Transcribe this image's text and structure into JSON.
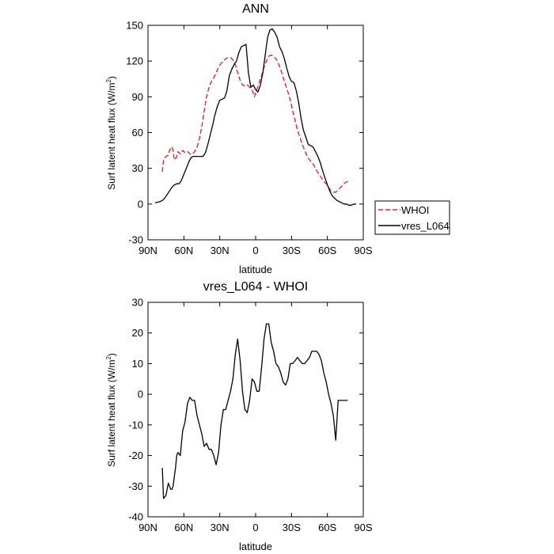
{
  "chart_data": [
    {
      "type": "line",
      "title": "ANN",
      "xlabel": "latitude",
      "ylabel": "Surf latent heat flux (W/m",
      "ylabel_sup": "2",
      "ylabel_close": ")",
      "xlim": [
        90,
        -90
      ],
      "ylim": [
        -30,
        150
      ],
      "xticks": [
        {
          "value": 90,
          "label": "90N"
        },
        {
          "value": 60,
          "label": "60N"
        },
        {
          "value": 30,
          "label": "30N"
        },
        {
          "value": 0,
          "label": "0"
        },
        {
          "value": -30,
          "label": "30S"
        },
        {
          "value": -60,
          "label": "60S"
        },
        {
          "value": -90,
          "label": "90S"
        }
      ],
      "yticks": [
        -30,
        0,
        30,
        60,
        90,
        120,
        150
      ],
      "legend": {
        "placement": "right",
        "entries": [
          "WHOI",
          "vres_L064"
        ]
      },
      "series": [
        {
          "name": "WHOI",
          "color": "#e41a1c",
          "dash": true,
          "x": [
            78,
            77,
            75,
            73,
            72,
            71,
            70,
            69,
            68,
            67,
            66,
            65,
            63,
            61,
            59,
            57,
            55,
            53,
            51,
            49,
            47,
            45,
            43,
            41,
            39,
            37,
            35,
            33,
            31,
            29,
            27,
            25,
            23,
            21,
            19,
            17,
            15,
            13,
            11,
            9,
            7,
            5,
            3,
            1,
            -1,
            -3,
            -5,
            -7,
            -9,
            -11,
            -13,
            -15,
            -17,
            -19,
            -21,
            -23,
            -25,
            -27,
            -29,
            -31,
            -33,
            -35,
            -37,
            -39,
            -41,
            -43,
            -45,
            -47,
            -49,
            -51,
            -53,
            -55,
            -57,
            -59,
            -61,
            -63,
            -65,
            -67,
            -69,
            -71,
            -73,
            -75,
            -77
          ],
          "y": [
            27,
            37,
            40,
            41,
            45,
            47,
            48,
            45,
            37,
            38,
            40,
            44,
            42,
            45,
            43,
            44,
            42,
            42,
            44,
            48,
            55,
            65,
            78,
            90,
            98,
            103,
            106,
            110,
            115,
            118,
            120,
            122,
            123,
            123,
            121,
            117,
            110,
            104,
            100,
            99,
            100,
            98,
            96,
            90,
            96,
            102,
            108,
            115,
            120,
            124,
            125,
            124,
            122,
            118,
            113,
            106,
            100,
            94,
            87,
            78,
            70,
            62,
            56,
            50,
            45,
            40,
            37,
            35,
            32,
            28,
            25,
            22,
            19,
            17,
            14,
            11,
            10,
            10,
            12,
            14,
            16,
            18,
            19
          ]
        },
        {
          "name": "vres_L064",
          "color": "#000000",
          "dash": false,
          "x": [
            84,
            80,
            78,
            76,
            74,
            72,
            70,
            68,
            66,
            64,
            62,
            60,
            58,
            56,
            54,
            52,
            50,
            48,
            46,
            44,
            42,
            40,
            38,
            36,
            34,
            32,
            30,
            28,
            26,
            24,
            22,
            20,
            18,
            16,
            14,
            12,
            10,
            8,
            6,
            4,
            2,
            0,
            -2,
            -4,
            -6,
            -8,
            -10,
            -12,
            -14,
            -16,
            -18,
            -20,
            -22,
            -24,
            -26,
            -28,
            -30,
            -32,
            -34,
            -36,
            -38,
            -40,
            -42,
            -44,
            -46,
            -48,
            -50,
            -52,
            -54,
            -56,
            -58,
            -60,
            -62,
            -64,
            -66,
            -68,
            -70,
            -72,
            -74,
            -76,
            -78,
            -80,
            -82,
            -84
          ],
          "y": [
            1,
            2,
            3,
            5,
            8,
            11,
            14,
            16,
            17,
            17,
            20,
            25,
            30,
            35,
            39,
            40,
            40,
            40,
            40,
            40,
            43,
            50,
            58,
            66,
            75,
            82,
            87,
            88,
            89,
            95,
            108,
            113,
            117,
            120,
            127,
            132,
            133,
            134,
            110,
            98,
            100,
            96,
            94,
            100,
            110,
            125,
            140,
            146,
            147,
            144,
            140,
            132,
            128,
            122,
            114,
            107,
            103,
            102,
            95,
            85,
            72,
            62,
            56,
            50,
            49,
            48,
            44,
            40,
            35,
            28,
            22,
            16,
            11,
            7,
            5,
            3,
            2,
            1,
            0,
            0,
            -1,
            -1,
            0,
            0
          ]
        }
      ]
    },
    {
      "type": "line",
      "title": "vres_L064 - WHOI",
      "xlabel": "latitude",
      "ylabel": "Surf latent heat flux (W/m",
      "ylabel_sup": "2",
      "ylabel_close": ")",
      "xlim": [
        90,
        -90
      ],
      "ylim": [
        -40,
        30
      ],
      "xticks": [
        {
          "value": 90,
          "label": "90N"
        },
        {
          "value": 60,
          "label": "60N"
        },
        {
          "value": 30,
          "label": "30N"
        },
        {
          "value": 0,
          "label": "0"
        },
        {
          "value": -30,
          "label": "30S"
        },
        {
          "value": -60,
          "label": "60S"
        },
        {
          "value": -90,
          "label": "90S"
        }
      ],
      "yticks": [
        -40,
        -30,
        -20,
        -10,
        0,
        10,
        20,
        30
      ],
      "series": [
        {
          "name": "vres_L064 - WHOI",
          "color": "#000000",
          "dash": false,
          "x": [
            78,
            77,
            75,
            73,
            71,
            70,
            69,
            68,
            67,
            66,
            65,
            63,
            61,
            59,
            57,
            56,
            55,
            53,
            51,
            49,
            47,
            45,
            43,
            41,
            39,
            37,
            35,
            33,
            31,
            29,
            27,
            25,
            23,
            21,
            19,
            17,
            15,
            13,
            11,
            9,
            7,
            5,
            3,
            1,
            -1,
            -3,
            -5,
            -7,
            -9,
            -11,
            -13,
            -15,
            -17,
            -19,
            -21,
            -23,
            -25,
            -27,
            -29,
            -31,
            -33,
            -35,
            -37,
            -39,
            -41,
            -43,
            -45,
            -47,
            -49,
            -51,
            -53,
            -55,
            -57,
            -59,
            -61,
            -63,
            -65,
            -67,
            -69,
            -71,
            -73,
            -75,
            -77
          ],
          "y": [
            -24,
            -34,
            -33,
            -29,
            -31,
            -31,
            -30,
            -27,
            -24,
            -20,
            -19,
            -20,
            -12,
            -9,
            -3,
            -2,
            -1,
            -2,
            -2,
            -7,
            -10,
            -13,
            -17,
            -16,
            -18,
            -18,
            -20,
            -23,
            -19,
            -10,
            -5,
            -5,
            -2,
            1,
            5,
            13,
            18,
            11,
            1,
            -5,
            -6,
            -2,
            5,
            4,
            1,
            1,
            9,
            18,
            23,
            23,
            17,
            14,
            10,
            9,
            7,
            4,
            3,
            5,
            10,
            10,
            11,
            12,
            11,
            10,
            10,
            11,
            12,
            14,
            14,
            14,
            13,
            11,
            7,
            4,
            0,
            -3,
            -7,
            -15,
            -2,
            -2,
            -2,
            -2,
            -2
          ]
        }
      ]
    }
  ]
}
